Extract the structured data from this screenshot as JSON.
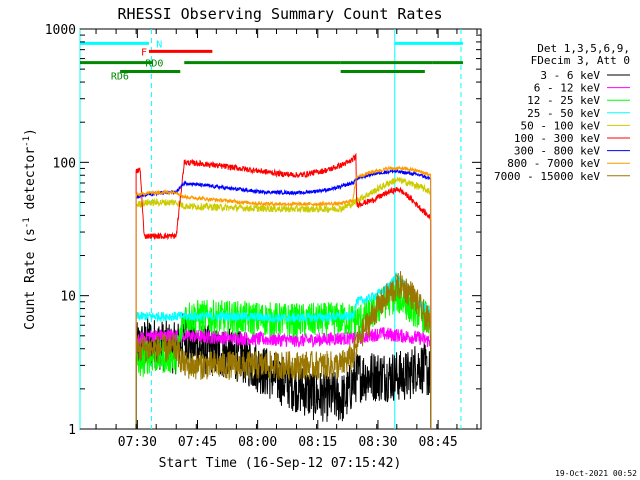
{
  "chart_data": {
    "type": "line",
    "title": "RHESSI Observing Summary Count Rates",
    "xlabel": "Start Time (16-Sep-12 07:15:42)",
    "ylabel_parts": [
      "Count Rate (s",
      "-1",
      " detector",
      "-1",
      ")"
    ],
    "y_scale": "log",
    "ylim": [
      1,
      1000
    ],
    "xlim_minutes": [
      0,
      100
    ],
    "y_ticks": [
      "1",
      "10",
      "100",
      "1000"
    ],
    "x_ticks": [
      "07:30",
      "07:45",
      "08:00",
      "08:15",
      "08:30",
      "08:45"
    ],
    "footer_stamp": "19-Oct-2021 00:52",
    "legend": {
      "header": [
        "Det 1,3,5,6,9,",
        "FDecim 3, Att 0"
      ],
      "entries": [
        {
          "label": "3 - 6 keV",
          "color": "#000000"
        },
        {
          "label": "6 - 12 keV",
          "color": "#ff00ff"
        },
        {
          "label": "12 - 25 keV",
          "color": "#00ff00"
        },
        {
          "label": "25 - 50 keV",
          "color": "#00ffff"
        },
        {
          "label": "50 - 100 keV",
          "color": "#cccc00"
        },
        {
          "label": "100 - 300 keV",
          "color": "#ff0000"
        },
        {
          "label": "300 - 800 keV",
          "color": "#0000ff"
        },
        {
          "label": "800 - 7000 keV",
          "color": "#ff9900"
        },
        {
          "label": "7000 - 15000 keV",
          "color": "#997700"
        }
      ]
    },
    "flag_labels": {
      "night": "N",
      "flare": "F",
      "decim_a": "RD0",
      "decim_b": "RD6"
    },
    "flag_colors": {
      "night": "#00ffff",
      "flare": "#ff0000",
      "decim": "#008800"
    },
    "series": [
      {
        "name": "3 - 6 keV",
        "color": "#000000",
        "noise": 0.45,
        "points": [
          [
            14,
            4
          ],
          [
            17,
            4.5
          ],
          [
            24,
            4
          ],
          [
            26,
            5
          ],
          [
            30,
            4
          ],
          [
            40,
            3.5
          ],
          [
            48,
            2.5
          ],
          [
            55,
            2
          ],
          [
            58,
            1.8
          ],
          [
            66,
            1.7
          ],
          [
            69,
            2.5
          ],
          [
            72,
            2.5
          ],
          [
            82,
            2.5
          ],
          [
            84,
            3
          ],
          [
            86,
            2.8
          ],
          [
            87.5,
            2.5
          ]
        ]
      },
      {
        "name": "6 - 12 keV",
        "color": "#ff00ff",
        "noise": 0.12,
        "points": [
          [
            14,
            4.5
          ],
          [
            17,
            5
          ],
          [
            24,
            5
          ],
          [
            26,
            5
          ],
          [
            40,
            4.8
          ],
          [
            55,
            4.6
          ],
          [
            65,
            4.8
          ],
          [
            69,
            4.8
          ],
          [
            75,
            5.2
          ],
          [
            80,
            5
          ],
          [
            85,
            4.8
          ],
          [
            87.5,
            4.5
          ]
        ]
      },
      {
        "name": "12 - 25 keV",
        "color": "#00ff00",
        "noise": 0.3,
        "points": [
          [
            14,
            3
          ],
          [
            17,
            3.5
          ],
          [
            24,
            3.5
          ],
          [
            26,
            7
          ],
          [
            40,
            6.8
          ],
          [
            55,
            6.5
          ],
          [
            65,
            6.7
          ],
          [
            69,
            6.5
          ],
          [
            72,
            7
          ],
          [
            76,
            9
          ],
          [
            79,
            10
          ],
          [
            83,
            8
          ],
          [
            86,
            7
          ],
          [
            87.5,
            6
          ]
        ]
      },
      {
        "name": "25 - 50 keV",
        "color": "#00ffff",
        "noise": 0.08,
        "points": [
          [
            14,
            7
          ],
          [
            17,
            7
          ],
          [
            24,
            7
          ],
          [
            26,
            7
          ],
          [
            30,
            7
          ],
          [
            40,
            7
          ],
          [
            50,
            6.8
          ],
          [
            60,
            6.9
          ],
          [
            68,
            7
          ],
          [
            69,
            9
          ],
          [
            72,
            9.5
          ],
          [
            76,
            11
          ],
          [
            79,
            14
          ],
          [
            82,
            11
          ],
          [
            85,
            8.5
          ],
          [
            87.5,
            7.5
          ]
        ]
      },
      {
        "name": "50 - 100 keV",
        "color": "#cccc00",
        "noise": 0.06,
        "points": [
          [
            14,
            48
          ],
          [
            17,
            50
          ],
          [
            24,
            50
          ],
          [
            26,
            47
          ],
          [
            35,
            46
          ],
          [
            45,
            45
          ],
          [
            55,
            44.5
          ],
          [
            65,
            45
          ],
          [
            68,
            49
          ],
          [
            69,
            52
          ],
          [
            73,
            60
          ],
          [
            77,
            70
          ],
          [
            79,
            74
          ],
          [
            82,
            70
          ],
          [
            85,
            65
          ],
          [
            87.5,
            60
          ]
        ]
      },
      {
        "name": "100 - 300 keV",
        "color": "#ff0000",
        "noise": 0.05,
        "points": [
          [
            14,
            85
          ],
          [
            15,
            88
          ],
          [
            16,
            28
          ],
          [
            24,
            28
          ],
          [
            26,
            100
          ],
          [
            30,
            98
          ],
          [
            40,
            90
          ],
          [
            50,
            82
          ],
          [
            55,
            80
          ],
          [
            62,
            88
          ],
          [
            67,
            100
          ],
          [
            68.8,
            110
          ],
          [
            69,
            48
          ],
          [
            73,
            52
          ],
          [
            77,
            60
          ],
          [
            79.5,
            63
          ],
          [
            82,
            55
          ],
          [
            85,
            45
          ],
          [
            87.5,
            38
          ]
        ]
      },
      {
        "name": "300 - 800 keV",
        "color": "#0000ff",
        "noise": 0.03,
        "points": [
          [
            14,
            55
          ],
          [
            17,
            58
          ],
          [
            24,
            60
          ],
          [
            26,
            70
          ],
          [
            35,
            65
          ],
          [
            45,
            60
          ],
          [
            55,
            59
          ],
          [
            63,
            63
          ],
          [
            68,
            70
          ],
          [
            69,
            75
          ],
          [
            73,
            82
          ],
          [
            78,
            86
          ],
          [
            82,
            83
          ],
          [
            85,
            80
          ],
          [
            87.5,
            75
          ]
        ]
      },
      {
        "name": "800 - 7000 keV",
        "color": "#ff9900",
        "noise": 0.03,
        "points": [
          [
            14,
            57
          ],
          [
            17,
            59
          ],
          [
            24,
            60
          ],
          [
            26,
            55
          ],
          [
            35,
            52
          ],
          [
            45,
            49
          ],
          [
            55,
            48.5
          ],
          [
            65,
            49
          ],
          [
            68,
            52
          ],
          [
            69,
            78
          ],
          [
            73,
            85
          ],
          [
            77,
            90
          ],
          [
            80,
            90
          ],
          [
            83,
            88
          ],
          [
            85,
            85
          ],
          [
            87.5,
            80
          ]
        ]
      },
      {
        "name": "7000 - 15000 keV",
        "color": "#997700",
        "noise": 0.25,
        "points": [
          [
            14,
            4
          ],
          [
            17,
            4
          ],
          [
            24,
            4
          ],
          [
            26,
            3
          ],
          [
            35,
            3
          ],
          [
            45,
            3
          ],
          [
            55,
            3
          ],
          [
            65,
            3
          ],
          [
            68,
            3.5
          ],
          [
            70,
            5
          ],
          [
            74,
            8
          ],
          [
            78,
            11
          ],
          [
            80,
            12
          ],
          [
            83,
            10
          ],
          [
            86,
            7
          ],
          [
            87.5,
            6
          ]
        ]
      }
    ],
    "night_bars": [
      [
        0,
        17.2
      ],
      [
        78.5,
        95.5
      ]
    ],
    "flare_bars": [
      [
        17.2,
        33
      ]
    ],
    "decim_bars": [
      [
        0,
        18
      ],
      [
        26,
        65
      ],
      [
        65,
        88
      ],
      [
        88,
        95.5
      ]
    ],
    "decim_bars_low": [
      [
        10,
        25
      ],
      [
        65,
        86
      ]
    ],
    "night_dash_lines": [
      17.8,
      95
    ],
    "saa_lines": [
      0,
      78.5
    ]
  }
}
